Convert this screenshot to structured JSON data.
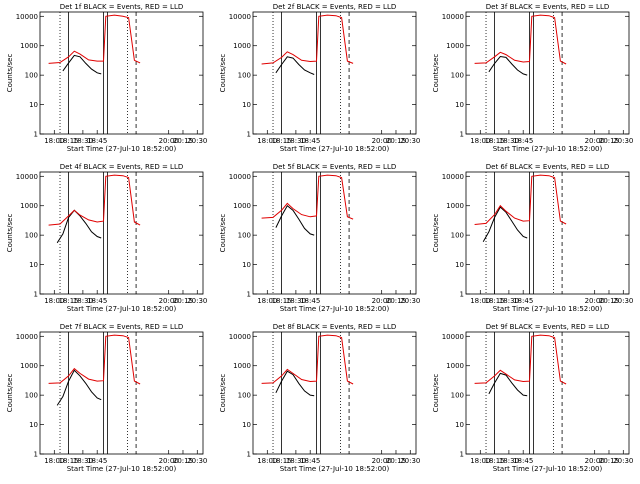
{
  "figure": {
    "xlabel": "Start Time (27-Jul-10 18:52:00)",
    "ylabel": "Counts/sec"
  },
  "colors": {
    "events": "#000000",
    "lld": "#e00000",
    "axes": "#000000"
  },
  "chart_data": [
    {
      "type": "line",
      "title": "Det 1f BLACK = Events, RED = LLD",
      "xlabel": "Start Time (27-Jul-10 18:52:00)",
      "ylabel": "Counts/sec",
      "yscale": "log",
      "x_ticks": [
        "18:00",
        "18:15",
        "18:30",
        "18:45",
        "20:00",
        "20:15",
        "20:30"
      ],
      "y_ticks": [
        "1",
        "10",
        "100",
        "1000",
        "10000"
      ],
      "ylim": [
        1,
        14000
      ],
      "series": [
        {
          "points": [
            [
              18.15,
              140
            ],
            [
              18.25,
              260
            ],
            [
              18.35,
              470
            ],
            [
              18.45,
              420
            ],
            [
              18.55,
              250
            ],
            [
              18.65,
              160
            ],
            [
              18.75,
              120
            ],
            [
              18.82,
              110
            ]
          ]
        },
        {
          "points": [
            [
              17.9,
              250
            ],
            [
              18.1,
              270
            ],
            [
              18.25,
              420
            ],
            [
              18.35,
              650
            ],
            [
              18.45,
              520
            ],
            [
              18.6,
              330
            ],
            [
              18.75,
              300
            ],
            [
              18.86,
              300
            ],
            [
              18.9,
              10000
            ],
            [
              19.05,
              11000
            ],
            [
              19.2,
              10000
            ],
            [
              19.3,
              9000
            ],
            [
              19.4,
              320
            ],
            [
              19.5,
              260
            ]
          ]
        }
      ]
    },
    {
      "type": "line",
      "title": "Det 2f BLACK = Events, RED = LLD",
      "xlabel": "Start Time (27-Jul-10 18:52:00)",
      "ylabel": "Counts/sec",
      "yscale": "log",
      "x_ticks": [
        "18:00",
        "18:15",
        "18:30",
        "18:45",
        "20:00",
        "20:15",
        "20:30"
      ],
      "y_ticks": [
        "1",
        "10",
        "100",
        "1000",
        "10000"
      ],
      "ylim": [
        1,
        14000
      ],
      "series": [
        {
          "points": [
            [
              18.15,
              120
            ],
            [
              18.25,
              230
            ],
            [
              18.35,
              420
            ],
            [
              18.45,
              380
            ],
            [
              18.55,
              230
            ],
            [
              18.65,
              150
            ],
            [
              18.75,
              120
            ],
            [
              18.82,
              105
            ]
          ]
        },
        {
          "points": [
            [
              17.9,
              240
            ],
            [
              18.1,
              260
            ],
            [
              18.25,
              400
            ],
            [
              18.35,
              620
            ],
            [
              18.45,
              500
            ],
            [
              18.6,
              320
            ],
            [
              18.75,
              290
            ],
            [
              18.86,
              300
            ],
            [
              18.9,
              10000
            ],
            [
              19.05,
              11000
            ],
            [
              19.2,
              10500
            ],
            [
              19.3,
              9000
            ],
            [
              19.4,
              300
            ],
            [
              19.5,
              250
            ]
          ]
        }
      ]
    },
    {
      "type": "line",
      "title": "Det 3f BLACK = Events, RED = LLD",
      "xlabel": "Start Time (27-Jul-10 18:52:00)",
      "ylabel": "Counts/sec",
      "yscale": "log",
      "x_ticks": [
        "18:00",
        "18:15",
        "18:30",
        "18:45",
        "20:00",
        "20:15",
        "20:30"
      ],
      "y_ticks": [
        "1",
        "10",
        "100",
        "1000",
        "10000"
      ],
      "ylim": [
        1,
        14000
      ],
      "series": [
        {
          "points": [
            [
              18.15,
              130
            ],
            [
              18.25,
              250
            ],
            [
              18.35,
              430
            ],
            [
              18.45,
              400
            ],
            [
              18.55,
              240
            ],
            [
              18.65,
              150
            ],
            [
              18.75,
              110
            ],
            [
              18.82,
              100
            ]
          ]
        },
        {
          "points": [
            [
              17.9,
              250
            ],
            [
              18.1,
              260
            ],
            [
              18.25,
              420
            ],
            [
              18.35,
              600
            ],
            [
              18.45,
              500
            ],
            [
              18.6,
              320
            ],
            [
              18.75,
              280
            ],
            [
              18.86,
              290
            ],
            [
              18.9,
              10000
            ],
            [
              19.05,
              11000
            ],
            [
              19.2,
              10500
            ],
            [
              19.3,
              9000
            ],
            [
              19.4,
              300
            ],
            [
              19.5,
              240
            ]
          ]
        }
      ]
    },
    {
      "type": "line",
      "title": "Det 4f BLACK = Events, RED = LLD",
      "xlabel": "Start Time (27-Jul-10 18:52:00)",
      "ylabel": "Counts/sec",
      "yscale": "log",
      "x_ticks": [
        "18:00",
        "18:15",
        "18:30",
        "18:45",
        "20:00",
        "20:15",
        "20:30"
      ],
      "y_ticks": [
        "1",
        "10",
        "100",
        "1000",
        "10000"
      ],
      "ylim": [
        1,
        14000
      ],
      "series": [
        {
          "points": [
            [
              18.05,
              55
            ],
            [
              18.15,
              110
            ],
            [
              18.25,
              400
            ],
            [
              18.35,
              700
            ],
            [
              18.45,
              450
            ],
            [
              18.55,
              250
            ],
            [
              18.65,
              130
            ],
            [
              18.75,
              90
            ],
            [
              18.82,
              80
            ]
          ]
        },
        {
          "points": [
            [
              17.9,
              220
            ],
            [
              18.1,
              240
            ],
            [
              18.25,
              450
            ],
            [
              18.35,
              700
            ],
            [
              18.45,
              480
            ],
            [
              18.6,
              330
            ],
            [
              18.75,
              280
            ],
            [
              18.86,
              300
            ],
            [
              18.9,
              10000
            ],
            [
              19.05,
              11000
            ],
            [
              19.2,
              10500
            ],
            [
              19.3,
              9000
            ],
            [
              19.4,
              280
            ],
            [
              19.5,
              220
            ]
          ]
        }
      ]
    },
    {
      "type": "line",
      "title": "Det 5f BLACK = Events, RED = LLD",
      "xlabel": "Start Time (27-Jul-10 18:52:00)",
      "ylabel": "Counts/sec",
      "yscale": "log",
      "x_ticks": [
        "18:00",
        "18:15",
        "18:30",
        "18:45",
        "20:00",
        "20:15",
        "20:30"
      ],
      "y_ticks": [
        "1",
        "10",
        "100",
        "1000",
        "10000"
      ],
      "ylim": [
        1,
        14000
      ],
      "series": [
        {
          "points": [
            [
              18.15,
              180
            ],
            [
              18.25,
              450
            ],
            [
              18.35,
              1000
            ],
            [
              18.45,
              700
            ],
            [
              18.55,
              350
            ],
            [
              18.65,
              170
            ],
            [
              18.75,
              110
            ],
            [
              18.82,
              100
            ]
          ]
        },
        {
          "points": [
            [
              17.9,
              380
            ],
            [
              18.1,
              400
            ],
            [
              18.25,
              700
            ],
            [
              18.35,
              1200
            ],
            [
              18.45,
              800
            ],
            [
              18.6,
              500
            ],
            [
              18.75,
              420
            ],
            [
              18.86,
              450
            ],
            [
              18.9,
              10000
            ],
            [
              19.05,
              11000
            ],
            [
              19.2,
              10500
            ],
            [
              19.3,
              9000
            ],
            [
              19.4,
              420
            ],
            [
              19.5,
              350
            ]
          ]
        }
      ]
    },
    {
      "type": "line",
      "title": "Det 6f BLACK = Events, RED = LLD",
      "xlabel": "Start Time (27-Jul-10 18:52:00)",
      "ylabel": "Counts/sec",
      "yscale": "log",
      "x_ticks": [
        "18:00",
        "18:15",
        "18:30",
        "18:45",
        "20:00",
        "20:15",
        "20:30"
      ],
      "y_ticks": [
        "1",
        "10",
        "100",
        "1000",
        "10000"
      ],
      "ylim": [
        1,
        14000
      ],
      "series": [
        {
          "points": [
            [
              18.05,
              60
            ],
            [
              18.15,
              130
            ],
            [
              18.25,
              400
            ],
            [
              18.35,
              900
            ],
            [
              18.45,
              600
            ],
            [
              18.55,
              300
            ],
            [
              18.65,
              150
            ],
            [
              18.75,
              90
            ],
            [
              18.82,
              80
            ]
          ]
        },
        {
          "points": [
            [
              17.9,
              230
            ],
            [
              18.1,
              250
            ],
            [
              18.25,
              500
            ],
            [
              18.35,
              1000
            ],
            [
              18.45,
              650
            ],
            [
              18.6,
              380
            ],
            [
              18.75,
              300
            ],
            [
              18.86,
              310
            ],
            [
              18.9,
              10000
            ],
            [
              19.05,
              11000
            ],
            [
              19.2,
              10500
            ],
            [
              19.3,
              9000
            ],
            [
              19.4,
              300
            ],
            [
              19.5,
              240
            ]
          ]
        }
      ]
    },
    {
      "type": "line",
      "title": "Det 7f BLACK = Events, RED = LLD",
      "xlabel": "Start Time (27-Jul-10 18:52:00)",
      "ylabel": "Counts/sec",
      "yscale": "log",
      "x_ticks": [
        "18:00",
        "18:15",
        "18:30",
        "18:45",
        "20:00",
        "20:15",
        "20:30"
      ],
      "y_ticks": [
        "1",
        "10",
        "100",
        "1000",
        "10000"
      ],
      "ylim": [
        1,
        14000
      ],
      "series": [
        {
          "points": [
            [
              18.05,
              45
            ],
            [
              18.15,
              90
            ],
            [
              18.25,
              300
            ],
            [
              18.35,
              700
            ],
            [
              18.45,
              450
            ],
            [
              18.55,
              250
            ],
            [
              18.65,
              130
            ],
            [
              18.75,
              80
            ],
            [
              18.82,
              70
            ]
          ]
        },
        {
          "points": [
            [
              17.9,
              250
            ],
            [
              18.1,
              260
            ],
            [
              18.25,
              450
            ],
            [
              18.35,
              800
            ],
            [
              18.45,
              550
            ],
            [
              18.6,
              350
            ],
            [
              18.75,
              300
            ],
            [
              18.86,
              310
            ],
            [
              18.9,
              10000
            ],
            [
              19.05,
              11000
            ],
            [
              19.2,
              10500
            ],
            [
              19.3,
              9000
            ],
            [
              19.4,
              300
            ],
            [
              19.5,
              240
            ]
          ]
        }
      ]
    },
    {
      "type": "line",
      "title": "Det 8f BLACK = Events, RED = LLD",
      "xlabel": "Start Time (27-Jul-10 18:52:00)",
      "ylabel": "Counts/sec",
      "yscale": "log",
      "x_ticks": [
        "18:00",
        "18:15",
        "18:30",
        "18:45",
        "20:00",
        "20:15",
        "20:30"
      ],
      "y_ticks": [
        "1",
        "10",
        "100",
        "1000",
        "10000"
      ],
      "ylim": [
        1,
        14000
      ],
      "series": [
        {
          "points": [
            [
              18.15,
              120
            ],
            [
              18.25,
              300
            ],
            [
              18.35,
              650
            ],
            [
              18.45,
              500
            ],
            [
              18.55,
              250
            ],
            [
              18.65,
              140
            ],
            [
              18.75,
              100
            ],
            [
              18.82,
              95
            ]
          ]
        },
        {
          "points": [
            [
              17.9,
              250
            ],
            [
              18.1,
              260
            ],
            [
              18.25,
              450
            ],
            [
              18.35,
              750
            ],
            [
              18.45,
              550
            ],
            [
              18.6,
              340
            ],
            [
              18.75,
              290
            ],
            [
              18.86,
              300
            ],
            [
              18.9,
              10000
            ],
            [
              19.05,
              11000
            ],
            [
              19.2,
              10500
            ],
            [
              19.3,
              9000
            ],
            [
              19.4,
              300
            ],
            [
              19.5,
              240
            ]
          ]
        }
      ]
    },
    {
      "type": "line",
      "title": "Det 9f BLACK = Events, RED = LLD",
      "xlabel": "Start Time (27-Jul-10 18:52:00)",
      "ylabel": "Counts/sec",
      "yscale": "log",
      "x_ticks": [
        "18:00",
        "18:15",
        "18:30",
        "18:45",
        "20:00",
        "20:15",
        "20:30"
      ],
      "y_ticks": [
        "1",
        "10",
        "100",
        "1000",
        "10000"
      ],
      "ylim": [
        1,
        14000
      ],
      "series": [
        {
          "points": [
            [
              18.15,
              110
            ],
            [
              18.25,
              260
            ],
            [
              18.35,
              550
            ],
            [
              18.45,
              480
            ],
            [
              18.55,
              260
            ],
            [
              18.65,
              150
            ],
            [
              18.75,
              100
            ],
            [
              18.82,
              95
            ]
          ]
        },
        {
          "points": [
            [
              17.9,
              250
            ],
            [
              18.1,
              260
            ],
            [
              18.25,
              450
            ],
            [
              18.35,
              700
            ],
            [
              18.45,
              520
            ],
            [
              18.6,
              330
            ],
            [
              18.75,
              290
            ],
            [
              18.86,
              300
            ],
            [
              18.9,
              10000
            ],
            [
              19.05,
              11000
            ],
            [
              19.2,
              10500
            ],
            [
              19.3,
              9000
            ],
            [
              19.4,
              300
            ],
            [
              19.5,
              240
            ]
          ]
        }
      ]
    }
  ]
}
